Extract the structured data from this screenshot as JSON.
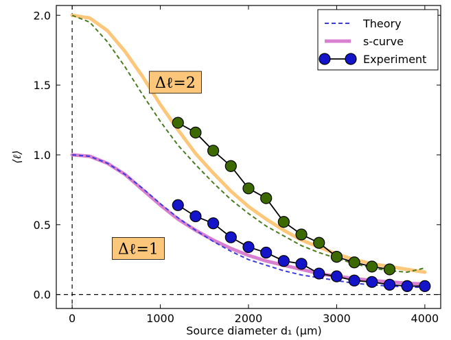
{
  "chart_data": {
    "type": "line",
    "xlabel": "Source diameter d₁ (μm)",
    "ylabel": "⟨ℓ⟩",
    "xlim": [
      -180,
      4180
    ],
    "ylim": [
      -0.1,
      2.07
    ],
    "xticks": [
      0,
      1000,
      2000,
      3000,
      4000
    ],
    "xtick_labels": [
      "0",
      "1000",
      "2000",
      "3000",
      "4000"
    ],
    "yticks": [
      0.0,
      0.5,
      1.0,
      1.5,
      2.0
    ],
    "ytick_labels": [
      "0.0",
      "0.5",
      "1.0",
      "1.5",
      "2.0"
    ],
    "grid": false,
    "legend_position": "top-right",
    "legend": [
      {
        "label": "Theory",
        "style": "dashed",
        "color": "#3b3bd9"
      },
      {
        "label": "s-curve",
        "style": "thick",
        "color": "#d97fd0"
      },
      {
        "label": "Experiment",
        "style": "marker-line",
        "color": "#1414c8"
      }
    ],
    "annotations": [
      {
        "text": "Δℓ=2",
        "x": 1170,
        "y": 1.52,
        "bg": "#fcc77a"
      },
      {
        "text": "Δℓ=1",
        "x": 750,
        "y": 0.33,
        "bg": "#fcc77a"
      }
    ],
    "reference_lines": {
      "vertical_x": 0,
      "horizontal_y": 0
    },
    "series": [
      {
        "name": "Theory",
        "group": "Δℓ=2",
        "kind": "dashed",
        "color": "#4a7a20",
        "x": [
          0,
          200,
          400,
          600,
          800,
          1000,
          1200,
          1400,
          1600,
          1800,
          2000,
          2200,
          2400,
          2600,
          2800,
          3000,
          3200,
          3400,
          3600,
          3800,
          4000
        ],
        "y": [
          2.0,
          1.95,
          1.81,
          1.63,
          1.43,
          1.24,
          1.07,
          0.93,
          0.8,
          0.68,
          0.58,
          0.49,
          0.42,
          0.35,
          0.3,
          0.26,
          0.22,
          0.19,
          0.17,
          0.16,
          0.19
        ]
      },
      {
        "name": "s-curve",
        "group": "Δℓ=2",
        "kind": "thick",
        "color": "#fcc77a",
        "x": [
          0,
          200,
          400,
          600,
          800,
          1000,
          1200,
          1400,
          1600,
          1800,
          2000,
          2200,
          2400,
          2600,
          2800,
          3000,
          3200,
          3400,
          3600,
          3800,
          4000
        ],
        "y": [
          2.0,
          1.98,
          1.89,
          1.74,
          1.56,
          1.36,
          1.18,
          1.01,
          0.87,
          0.74,
          0.63,
          0.54,
          0.46,
          0.39,
          0.34,
          0.29,
          0.25,
          0.22,
          0.2,
          0.18,
          0.16
        ]
      },
      {
        "name": "Experiment",
        "group": "Δℓ=2",
        "kind": "marker-line",
        "color": "#3d6a00",
        "x": [
          1200,
          1400,
          1600,
          1800,
          2000,
          2200,
          2400,
          2600,
          2800,
          3000,
          3200,
          3400,
          3600
        ],
        "y": [
          1.23,
          1.16,
          1.03,
          0.92,
          0.76,
          0.69,
          0.52,
          0.43,
          0.37,
          0.27,
          0.23,
          0.2,
          0.18
        ]
      },
      {
        "name": "Theory",
        "group": "Δℓ=1",
        "kind": "dashed",
        "color": "#3b3bd9",
        "x": [
          0,
          200,
          400,
          600,
          800,
          1000,
          1200,
          1400,
          1600,
          1800,
          2000,
          2200,
          2400,
          2600,
          2800,
          3000,
          3200,
          3400,
          3600,
          3800,
          4000
        ],
        "y": [
          1.0,
          0.99,
          0.94,
          0.86,
          0.76,
          0.65,
          0.55,
          0.46,
          0.38,
          0.31,
          0.25,
          0.21,
          0.17,
          0.14,
          0.12,
          0.1,
          0.08,
          0.07,
          0.06,
          0.055,
          0.05
        ]
      },
      {
        "name": "s-curve",
        "group": "Δℓ=1",
        "kind": "thick",
        "color": "#d97fd0",
        "x": [
          0,
          200,
          400,
          600,
          800,
          1000,
          1200,
          1400,
          1600,
          1800,
          2000,
          2200,
          2400,
          2600,
          2800,
          3000,
          3200,
          3400,
          3600,
          3800,
          4000
        ],
        "y": [
          1.0,
          0.99,
          0.94,
          0.86,
          0.75,
          0.64,
          0.54,
          0.46,
          0.39,
          0.33,
          0.28,
          0.24,
          0.21,
          0.18,
          0.15,
          0.13,
          0.115,
          0.1,
          0.09,
          0.08,
          0.075
        ]
      },
      {
        "name": "Experiment",
        "group": "Δℓ=1",
        "kind": "marker-line",
        "color": "#1414c8",
        "x": [
          1200,
          1400,
          1600,
          1800,
          2000,
          2200,
          2400,
          2600,
          2800,
          3000,
          3200,
          3400,
          3600,
          3800,
          4000
        ],
        "y": [
          0.64,
          0.56,
          0.51,
          0.41,
          0.34,
          0.3,
          0.24,
          0.22,
          0.15,
          0.13,
          0.1,
          0.09,
          0.07,
          0.06,
          0.06
        ]
      }
    ]
  }
}
